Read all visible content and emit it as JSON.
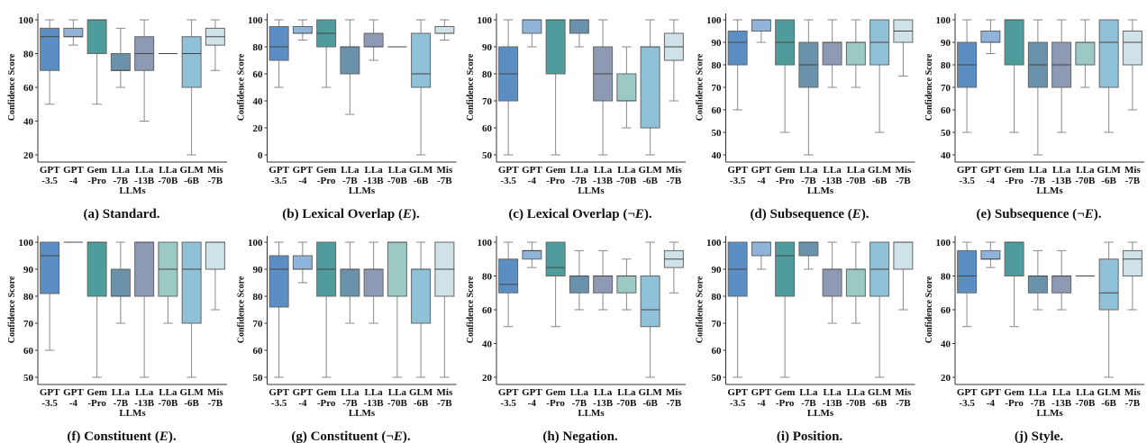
{
  "chart_data": {
    "type": "boxplot",
    "shared": {
      "categories": [
        "GPT-3.5",
        "GPT-4",
        "Gem-Pro",
        "LLa-7B",
        "LLa-13B",
        "LLa-70B",
        "GLM-6B",
        "Mis-7B"
      ],
      "category_labels": [
        [
          "GPT",
          "-3.5"
        ],
        [
          "GPT",
          "-4"
        ],
        [
          "Gem",
          "-Pro"
        ],
        [
          "LLa",
          "-7B"
        ],
        [
          "LLa",
          "-13B"
        ],
        [
          "LLa",
          "-70B"
        ],
        [
          "GLM",
          "-6B"
        ],
        [
          "Mis",
          "-7B"
        ]
      ],
      "colors": [
        "#5b8fc4",
        "#8fb3d9",
        "#4f9c9c",
        "#6a93ab",
        "#8e9ab4",
        "#9dc9c4",
        "#8fc1d9",
        "#cfe2e8"
      ],
      "xlabel": "LLMs",
      "ylabel": "Confidence Score",
      "box_format": [
        "whisker_low",
        "q1",
        "median",
        "q3",
        "whisker_high"
      ]
    },
    "panels": [
      {
        "caption": "(a) Standard.",
        "yticks": [
          20,
          40,
          60,
          80,
          100
        ],
        "boxes": [
          [
            50,
            70,
            90,
            95,
            100
          ],
          [
            85,
            90,
            90,
            95,
            100
          ],
          [
            50,
            80,
            100,
            100,
            100
          ],
          [
            60,
            70,
            70,
            80,
            95
          ],
          [
            40,
            70,
            80,
            90,
            100
          ],
          [
            80,
            80,
            80,
            80,
            80
          ],
          [
            20,
            60,
            80,
            90,
            100
          ],
          [
            70,
            85,
            90,
            95,
            100
          ]
        ]
      },
      {
        "caption": "(b) Lexical Overlap (E).",
        "yticks": [
          0,
          20,
          40,
          60,
          80,
          100
        ],
        "boxes": [
          [
            50,
            70,
            80,
            95,
            100
          ],
          [
            85,
            90,
            90,
            95,
            100
          ],
          [
            50,
            80,
            90,
            100,
            100
          ],
          [
            30,
            60,
            80,
            80,
            100
          ],
          [
            70,
            80,
            80,
            90,
            100
          ],
          [
            80,
            80,
            80,
            80,
            80
          ],
          [
            0,
            50,
            60,
            90,
            100
          ],
          [
            85,
            90,
            90,
            95,
            100
          ]
        ]
      },
      {
        "caption": "(c) Lexical Overlap (¬E).",
        "yticks": [
          50,
          60,
          70,
          80,
          90,
          100
        ],
        "boxes": [
          [
            50,
            70,
            80,
            90,
            100
          ],
          [
            90,
            95,
            100,
            100,
            100
          ],
          [
            50,
            80,
            100,
            100,
            100
          ],
          [
            90,
            95,
            100,
            100,
            100
          ],
          [
            50,
            70,
            80,
            90,
            100
          ],
          [
            60,
            70,
            70,
            80,
            90
          ],
          [
            50,
            60,
            90,
            90,
            100
          ],
          [
            70,
            85,
            90,
            95,
            100
          ]
        ]
      },
      {
        "caption": "(d) Subsequence (E).",
        "yticks": [
          40,
          50,
          60,
          70,
          80,
          90,
          100
        ],
        "boxes": [
          [
            60,
            80,
            90,
            95,
            100
          ],
          [
            90,
            95,
            100,
            100,
            100
          ],
          [
            50,
            80,
            90,
            100,
            100
          ],
          [
            40,
            70,
            80,
            90,
            100
          ],
          [
            70,
            80,
            90,
            90,
            100
          ],
          [
            70,
            80,
            90,
            90,
            100
          ],
          [
            50,
            80,
            90,
            100,
            100
          ],
          [
            75,
            90,
            95,
            100,
            100
          ]
        ]
      },
      {
        "caption": "(e) Subsequence (¬E).",
        "yticks": [
          40,
          50,
          60,
          70,
          80,
          90,
          100
        ],
        "boxes": [
          [
            50,
            70,
            80,
            90,
            100
          ],
          [
            85,
            90,
            90,
            95,
            100
          ],
          [
            50,
            80,
            100,
            100,
            100
          ],
          [
            40,
            70,
            80,
            90,
            100
          ],
          [
            50,
            70,
            80,
            90,
            100
          ],
          [
            70,
            80,
            90,
            90,
            100
          ],
          [
            50,
            70,
            90,
            100,
            100
          ],
          [
            60,
            80,
            90,
            95,
            100
          ]
        ]
      },
      {
        "caption": "(f) Constituent (E).",
        "yticks": [
          50,
          60,
          70,
          80,
          90,
          100
        ],
        "boxes": [
          [
            60,
            81,
            95,
            100,
            100
          ],
          [
            100,
            100,
            100,
            100,
            100
          ],
          [
            50,
            80,
            100,
            100,
            100
          ],
          [
            70,
            80,
            80,
            90,
            100
          ],
          [
            50,
            80,
            100,
            100,
            100
          ],
          [
            70,
            80,
            90,
            100,
            100
          ],
          [
            50,
            70,
            90,
            100,
            100
          ],
          [
            75,
            90,
            100,
            100,
            100
          ]
        ]
      },
      {
        "caption": "(g) Constituent (¬E).",
        "yticks": [
          50,
          60,
          70,
          80,
          90,
          100
        ],
        "boxes": [
          [
            50,
            76,
            90,
            95,
            100
          ],
          [
            85,
            90,
            90,
            95,
            100
          ],
          [
            50,
            80,
            90,
            100,
            100
          ],
          [
            70,
            80,
            90,
            90,
            100
          ],
          [
            70,
            80,
            90,
            90,
            100
          ],
          [
            50,
            80,
            100,
            100,
            100
          ],
          [
            50,
            70,
            90,
            90,
            100
          ],
          [
            50,
            80,
            90,
            100,
            100
          ]
        ]
      },
      {
        "caption": "(h) Negation.",
        "yticks": [
          20,
          40,
          60,
          80,
          100
        ],
        "boxes": [
          [
            50,
            70,
            75,
            90,
            100
          ],
          [
            85,
            90,
            95,
            95,
            100
          ],
          [
            50,
            80,
            85,
            100,
            100
          ],
          [
            60,
            70,
            80,
            80,
            95
          ],
          [
            60,
            70,
            80,
            80,
            95
          ],
          [
            60,
            70,
            80,
            80,
            90
          ],
          [
            20,
            50,
            60,
            80,
            100
          ],
          [
            70,
            85,
            90,
            95,
            100
          ]
        ]
      },
      {
        "caption": "(i) Position.",
        "yticks": [
          50,
          60,
          70,
          80,
          90,
          100
        ],
        "boxes": [
          [
            50,
            80,
            90,
            100,
            100
          ],
          [
            90,
            95,
            100,
            100,
            100
          ],
          [
            50,
            80,
            95,
            100,
            100
          ],
          [
            90,
            95,
            100,
            100,
            100
          ],
          [
            70,
            80,
            90,
            90,
            100
          ],
          [
            70,
            80,
            90,
            90,
            100
          ],
          [
            50,
            80,
            90,
            100,
            100
          ],
          [
            75,
            90,
            100,
            100,
            100
          ]
        ]
      },
      {
        "caption": "(j) Style.",
        "yticks": [
          20,
          40,
          60,
          80,
          100
        ],
        "boxes": [
          [
            50,
            70,
            80,
            95,
            100
          ],
          [
            85,
            90,
            90,
            95,
            100
          ],
          [
            50,
            80,
            100,
            100,
            100
          ],
          [
            60,
            70,
            80,
            80,
            95
          ],
          [
            60,
            70,
            80,
            80,
            95
          ],
          [
            80,
            80,
            80,
            80,
            80
          ],
          [
            20,
            60,
            70,
            90,
            100
          ],
          [
            60,
            80,
            90,
            95,
            100
          ]
        ]
      }
    ]
  }
}
